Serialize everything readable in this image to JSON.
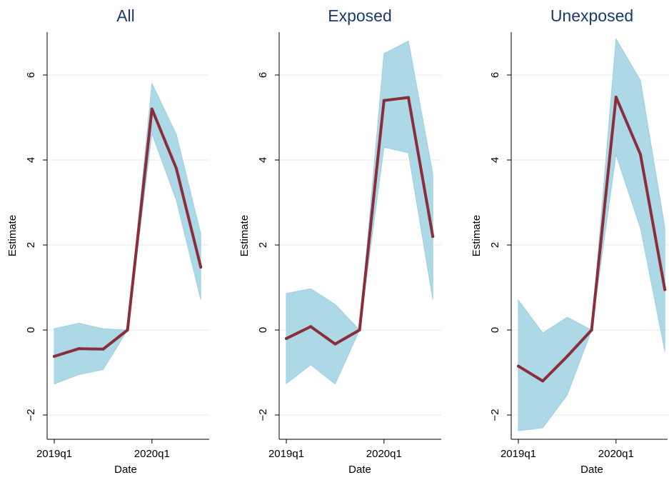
{
  "chart_data": [
    {
      "type": "line",
      "title": "All",
      "xlabel": "Date",
      "ylabel": "Estimate",
      "x": [
        "2019q1",
        "2019q2",
        "2019q3",
        "2019q4",
        "2020q1",
        "2020q2",
        "2020q3"
      ],
      "x_ticks": [
        "2019q1",
        "2020q1"
      ],
      "y_ticks": [
        "−2",
        "0",
        "2",
        "4",
        "6"
      ],
      "y_tick_values": [
        -2,
        0,
        2,
        4,
        6
      ],
      "ylim": [
        -2.6,
        7.0
      ],
      "grid": true,
      "series": [
        {
          "values": [
            -0.62,
            -0.44,
            -0.45,
            0.0,
            5.2,
            3.8,
            1.48
          ],
          "ci_lower": [
            -1.27,
            -1.05,
            -0.93,
            0.0,
            4.62,
            3.05,
            0.72
          ],
          "ci_upper": [
            0.03,
            0.16,
            0.03,
            0.0,
            5.8,
            4.6,
            2.26
          ]
        }
      ]
    },
    {
      "type": "line",
      "title": "Exposed",
      "xlabel": "Date",
      "ylabel": "Estimate",
      "x": [
        "2019q1",
        "2019q2",
        "2019q3",
        "2019q4",
        "2020q1",
        "2020q2",
        "2020q3"
      ],
      "x_ticks": [
        "2019q1",
        "2020q1"
      ],
      "y_ticks": [
        "−2",
        "0",
        "2",
        "4",
        "6"
      ],
      "y_tick_values": [
        -2,
        0,
        2,
        4,
        6
      ],
      "ylim": [
        -2.6,
        7.0
      ],
      "grid": true,
      "series": [
        {
          "values": [
            -0.2,
            0.08,
            -0.33,
            0.0,
            5.4,
            5.47,
            2.2
          ],
          "ci_lower": [
            -1.26,
            -0.82,
            -1.27,
            0.0,
            4.3,
            4.17,
            0.72
          ],
          "ci_upper": [
            0.86,
            0.97,
            0.6,
            0.0,
            6.5,
            6.8,
            3.67
          ]
        }
      ]
    },
    {
      "type": "line",
      "title": "Unexposed",
      "xlabel": "Date",
      "ylabel": "Estimate",
      "x": [
        "2019q1",
        "2019q2",
        "2019q3",
        "2019q4",
        "2020q1",
        "2020q2",
        "2020q3"
      ],
      "x_ticks": [
        "2019q1",
        "2020q1"
      ],
      "y_ticks": [
        "−2",
        "0",
        "2",
        "4",
        "6"
      ],
      "y_tick_values": [
        -2,
        0,
        2,
        4,
        6
      ],
      "ylim": [
        -2.6,
        7.0
      ],
      "grid": true,
      "series": [
        {
          "values": [
            -0.85,
            -1.2,
            -0.62,
            0.0,
            5.48,
            4.13,
            0.95
          ],
          "ci_lower": [
            -2.37,
            -2.3,
            -1.53,
            0.0,
            4.13,
            2.4,
            -0.5
          ],
          "ci_upper": [
            0.7,
            -0.07,
            0.3,
            0.0,
            6.85,
            5.87,
            2.4
          ]
        }
      ]
    }
  ],
  "colors": {
    "line": "#8a2e3c",
    "band": "#add8e6",
    "band_edge": "#9fcfe0",
    "grid": "#eaeaea",
    "axis": "#000000",
    "title": "#1a3a6e"
  }
}
